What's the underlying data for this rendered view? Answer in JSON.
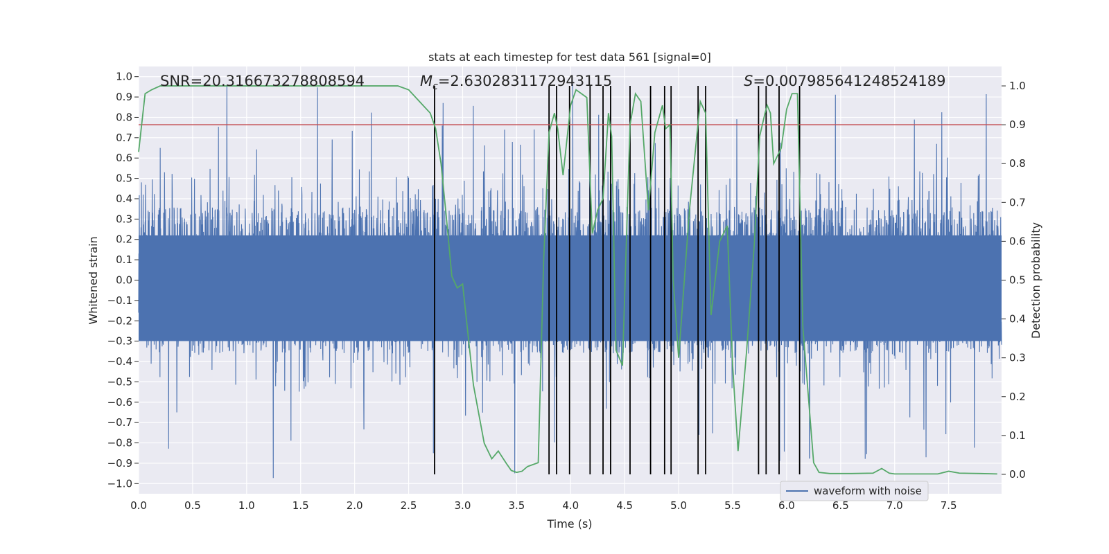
{
  "chart_data": {
    "type": "line",
    "title": "stats at each timestep for test data 561 [signal=0]",
    "xlabel": "Time (s)",
    "ylabel": "Whitened strain",
    "ylabel_right": "Detection probability",
    "xlim": [
      0.0,
      7.99
    ],
    "ylim": [
      -1.05,
      1.05
    ],
    "ylim_right": [
      -0.05,
      1.05
    ],
    "xticks": [
      "0.0",
      "0.5",
      "1.0",
      "1.5",
      "2.0",
      "2.5",
      "3.0",
      "3.5",
      "4.0",
      "4.5",
      "5.0",
      "5.5",
      "6.0",
      "6.5",
      "7.0",
      "7.5"
    ],
    "yticks": [
      "1.0",
      "0.9",
      "0.8",
      "0.7",
      "0.6",
      "0.5",
      "0.4",
      "0.3",
      "0.2",
      "0.1",
      "0.0",
      "−0.1",
      "−0.2",
      "−0.3",
      "−0.4",
      "−0.5",
      "−0.6",
      "−0.7",
      "−0.8",
      "−0.9",
      "−1.0"
    ],
    "yticks_right": [
      "1.0",
      "0.9",
      "0.8",
      "0.7",
      "0.6",
      "0.5",
      "0.4",
      "0.3",
      "0.2",
      "0.1",
      "0.0"
    ],
    "annotations": {
      "snr": "SNR=20.316673278808594",
      "mc_symbol": "M",
      "mc_sub": "c",
      "mc_value": "=2.6302831172943115",
      "s_symbol": "S",
      "s_value": "=0.007985641248524189"
    },
    "legend": {
      "label": "waveform with noise",
      "location": "lower center"
    },
    "series": [
      {
        "name": "waveform with noise",
        "color": "#4c72b0",
        "axis": "left",
        "description": "dense noisy whitened strain, amplitude mostly within ±0.5 with spikes to about ±0.9",
        "generator": {
          "samples": 4000,
          "core_amplitude": 0.36,
          "peak_envelope": 0.55,
          "max_abs": 0.98
        }
      },
      {
        "name": "detection probability",
        "color": "#55a868",
        "axis": "right",
        "x": [
          0.0,
          0.06,
          0.12,
          0.2,
          0.5,
          1.0,
          1.5,
          2.0,
          2.2,
          2.4,
          2.5,
          2.6,
          2.7,
          2.75,
          2.8,
          2.85,
          2.9,
          2.95,
          3.0,
          3.1,
          3.2,
          3.27,
          3.33,
          3.4,
          3.45,
          3.5,
          3.55,
          3.6,
          3.7,
          3.75,
          3.8,
          3.85,
          3.88,
          3.93,
          4.0,
          4.05,
          4.1,
          4.15,
          4.2,
          4.25,
          4.3,
          4.35,
          4.38,
          4.42,
          4.48,
          4.55,
          4.6,
          4.65,
          4.72,
          4.78,
          4.85,
          4.88,
          4.92,
          4.95,
          5.0,
          5.1,
          5.2,
          5.25,
          5.3,
          5.38,
          5.45,
          5.5,
          5.55,
          5.63,
          5.7,
          5.75,
          5.8,
          5.82,
          5.85,
          5.88,
          5.95,
          6.0,
          6.05,
          6.1,
          6.15,
          6.25,
          6.3,
          6.4,
          6.6,
          6.8,
          6.88,
          6.95,
          7.0,
          7.2,
          7.4,
          7.5,
          7.6,
          7.8,
          7.95
        ],
        "y": [
          0.83,
          0.98,
          0.99,
          1.0,
          1.0,
          1.0,
          1.0,
          1.0,
          1.0,
          1.0,
          0.99,
          0.96,
          0.93,
          0.89,
          0.8,
          0.66,
          0.51,
          0.48,
          0.49,
          0.23,
          0.08,
          0.04,
          0.06,
          0.03,
          0.01,
          0.005,
          0.008,
          0.02,
          0.03,
          0.55,
          0.88,
          0.93,
          0.89,
          0.77,
          0.95,
          0.99,
          0.98,
          0.97,
          0.62,
          0.68,
          0.71,
          0.93,
          0.87,
          0.32,
          0.28,
          0.9,
          0.98,
          0.96,
          0.68,
          0.88,
          0.95,
          0.89,
          0.9,
          0.5,
          0.3,
          0.68,
          0.96,
          0.93,
          0.41,
          0.6,
          0.64,
          0.28,
          0.06,
          0.32,
          0.59,
          0.87,
          0.93,
          0.95,
          0.93,
          0.8,
          0.84,
          0.94,
          0.98,
          0.98,
          0.38,
          0.03,
          0.005,
          0.002,
          0.002,
          0.003,
          0.015,
          0.003,
          0.001,
          0.001,
          0.001,
          0.008,
          0.003,
          0.002,
          0.001
        ]
      }
    ],
    "threshold": {
      "value": 0.9,
      "axis": "right",
      "color": "#c44e52"
    },
    "event_lines": [
      2.74,
      3.8,
      3.87,
      3.99,
      4.18,
      4.3,
      4.37,
      4.55,
      4.74,
      4.87,
      4.93,
      5.18,
      5.25,
      5.74,
      5.81,
      5.93,
      6.12
    ],
    "event_line_color": "#000000"
  }
}
